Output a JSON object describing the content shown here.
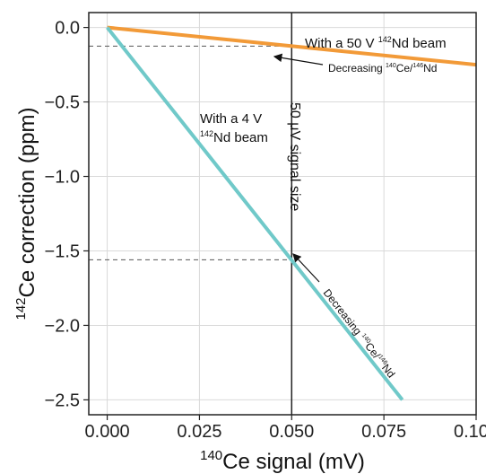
{
  "chart_data": {
    "type": "line",
    "xlabel": {
      "sup": "140",
      "text": "Ce signal (mV)"
    },
    "ylabel": {
      "sup": "142",
      "text": "Ce correction (ppm)"
    },
    "xlim": [
      -0.005,
      0.1
    ],
    "ylim": [
      -2.6,
      0.1
    ],
    "x_ticks": [
      0.0,
      0.025,
      0.05,
      0.075,
      0.1
    ],
    "x_tick_labels": [
      "0.000",
      "0.025",
      "0.050",
      "0.075",
      "0.100"
    ],
    "y_ticks": [
      0.0,
      -0.5,
      -1.0,
      -1.5,
      -2.0,
      -2.5
    ],
    "y_tick_labels": [
      "0.0",
      "−0.5",
      "−1.0",
      "−1.5",
      "−2.0",
      "−2.5"
    ],
    "grid": true,
    "series": [
      {
        "color": "#f29a38",
        "x": [
          0.0,
          0.1
        ],
        "y": [
          0.0,
          -0.25
        ]
      },
      {
        "color": "#70c9c9",
        "x": [
          0.0,
          0.08
        ],
        "y": [
          0.0,
          -2.5
        ]
      }
    ],
    "vline": {
      "x": 0.05,
      "label": "50 μV signal size"
    },
    "hlines": [
      {
        "y": -0.125,
        "x_end": 0.05
      },
      {
        "y": -1.56,
        "x_end": 0.05
      }
    ],
    "annotations": [
      {
        "id": "orange",
        "color": "#f29a38",
        "parts": [
          [
            "With a 50 V ",
            ""
          ],
          [
            "142",
            "sup"
          ],
          [
            "Nd beam",
            ""
          ]
        ]
      },
      {
        "id": "teal1",
        "color": "#70c9c9",
        "parts": [
          [
            "With a 4 V",
            ""
          ]
        ]
      },
      {
        "id": "teal2",
        "color": "#70c9c9",
        "parts": [
          [
            "142",
            "sup"
          ],
          [
            "Nd beam",
            ""
          ]
        ]
      },
      {
        "id": "dec1",
        "color": "#111111",
        "parts": [
          [
            "Decreasing ",
            ""
          ],
          [
            "140",
            "sup"
          ],
          [
            "Ce/",
            ""
          ],
          [
            "146",
            "sup"
          ],
          [
            "Nd",
            ""
          ]
        ]
      },
      {
        "id": "dec2",
        "color": "#111111",
        "parts": [
          [
            "Decreasing ",
            ""
          ],
          [
            "140",
            "sup"
          ],
          [
            "Ce/",
            ""
          ],
          [
            "146",
            "sup"
          ],
          [
            "Nd",
            ""
          ]
        ]
      }
    ]
  }
}
